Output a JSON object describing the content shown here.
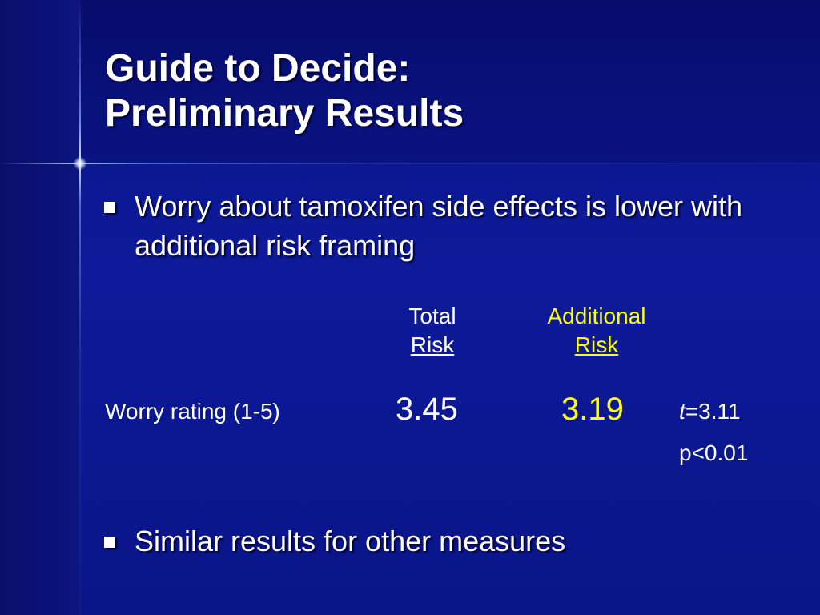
{
  "slide": {
    "title_line1": "Guide to Decide:",
    "title_line2": "Preliminary Results",
    "bullets": [
      "Worry about tamoxifen side effects is lower with additional risk framing",
      "Similar results for other measures"
    ],
    "table": {
      "columns": [
        {
          "line1": "Total",
          "line2": "Risk"
        },
        {
          "line1": "Additional",
          "line2": "Risk"
        }
      ],
      "row_label": "Worry rating (1-5)",
      "values": [
        "3.45",
        "3.19"
      ],
      "t_symbol": "t",
      "t_value": "=3.11",
      "p_value": "p<0.01"
    },
    "colors": {
      "background": "#0d1790",
      "text": "#ffffff",
      "highlight": "#ffff00"
    }
  }
}
